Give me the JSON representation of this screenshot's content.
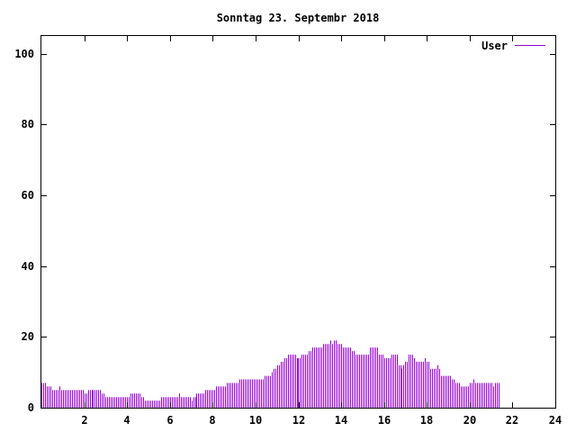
{
  "chart_data": {
    "type": "bar",
    "title": "Sonntag 23. Septembr 2018",
    "xlabel": "",
    "ylabel": "",
    "xlim": [
      0,
      24
    ],
    "ylim": [
      0,
      105
    ],
    "x_ticks": [
      2,
      4,
      6,
      8,
      10,
      12,
      14,
      16,
      18,
      20,
      22,
      24
    ],
    "y_ticks": [
      0,
      20,
      40,
      60,
      80,
      100
    ],
    "grid": false,
    "legend_position": "top-right",
    "series": [
      {
        "name": "User",
        "color": "#9400d3",
        "x_start": 0,
        "x_step": 0.083333,
        "values": [
          7,
          7,
          7,
          6,
          6,
          6,
          5,
          5,
          5,
          5,
          6,
          5,
          5,
          5,
          5,
          5,
          5,
          5,
          5,
          5,
          5,
          5,
          5,
          5,
          4,
          4,
          5,
          5,
          5,
          5,
          5,
          5,
          5,
          5,
          4,
          4,
          3,
          3,
          3,
          3,
          3,
          3,
          3,
          3,
          3,
          3,
          3,
          3,
          3,
          3,
          4,
          4,
          4,
          4,
          4,
          4,
          3,
          3,
          2,
          2,
          2,
          2,
          2,
          2,
          2,
          2,
          2,
          3,
          3,
          3,
          3,
          3,
          3,
          3,
          3,
          3,
          3,
          4,
          3,
          3,
          3,
          3,
          3,
          3,
          2,
          3,
          3,
          4,
          4,
          4,
          4,
          4,
          5,
          5,
          5,
          5,
          5,
          5,
          6,
          6,
          6,
          6,
          6,
          6,
          7,
          7,
          7,
          7,
          7,
          7,
          7,
          8,
          8,
          8,
          8,
          8,
          8,
          8,
          8,
          8,
          8,
          8,
          8,
          8,
          8,
          9,
          9,
          9,
          9,
          10,
          11,
          11,
          12,
          12,
          13,
          13,
          14,
          14,
          15,
          15,
          15,
          15,
          15,
          14,
          14,
          14,
          15,
          15,
          15,
          15,
          16,
          16,
          17,
          17,
          17,
          17,
          17,
          17,
          18,
          18,
          18,
          18,
          19,
          18,
          19,
          19,
          18,
          18,
          18,
          17,
          17,
          17,
          17,
          17,
          16,
          16,
          15,
          15,
          15,
          15,
          15,
          15,
          15,
          15,
          17,
          17,
          17,
          17,
          17,
          15,
          15,
          15,
          14,
          14,
          14,
          14,
          15,
          15,
          15,
          15,
          12,
          12,
          11,
          12,
          13,
          13,
          15,
          15,
          15,
          14,
          13,
          13,
          13,
          13,
          13,
          14,
          13,
          13,
          11,
          11,
          11,
          11,
          12,
          11,
          9,
          9,
          9,
          9,
          9,
          9,
          8,
          8,
          7,
          7,
          7,
          6,
          6,
          6,
          6,
          6,
          7,
          7,
          8,
          7,
          7,
          7,
          7,
          7,
          7,
          7,
          7,
          7,
          7,
          6,
          7,
          7,
          7
        ]
      }
    ]
  }
}
